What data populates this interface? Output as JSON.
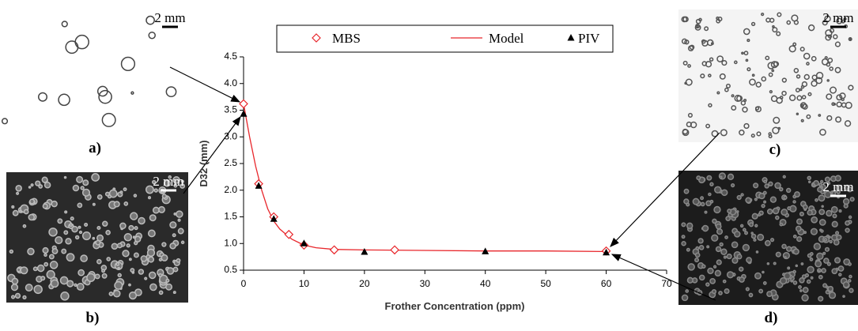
{
  "chart_data": {
    "type": "line",
    "x_label": "Frother Concentration (ppm)",
    "y_label": "D32 (mm)",
    "xlim": [
      0,
      70
    ],
    "xticks": [
      0,
      10,
      20,
      30,
      40,
      50,
      60,
      70
    ],
    "ylim": [
      0.5,
      4.5
    ],
    "yticks": [
      0.5,
      {
        "value": 1,
        "label": "1.0"
      },
      1.5,
      {
        "value": 2,
        "label": "2.0"
      },
      2.5,
      {
        "value": 3,
        "label": "3.0"
      },
      3.5,
      {
        "value": 4,
        "label": "4.0"
      },
      4.5
    ],
    "series": [
      {
        "name": "MBS",
        "color": "#e8262b",
        "marker": "diamond",
        "x": [
          0,
          2.5,
          5,
          7.5,
          10,
          15,
          25,
          60
        ],
        "values": [
          3.62,
          2.12,
          1.5,
          1.17,
          0.97,
          0.88,
          0.88,
          0.86
        ]
      },
      {
        "name": "Model",
        "color": "#e8262b",
        "marker": "line",
        "x": [
          0,
          1,
          2,
          3,
          4,
          5,
          6,
          8,
          10,
          12,
          15,
          20,
          30,
          40,
          50,
          60
        ],
        "values": [
          3.62,
          3.0,
          2.45,
          2.0,
          1.65,
          1.42,
          1.27,
          1.08,
          0.97,
          0.92,
          0.89,
          0.88,
          0.87,
          0.86,
          0.86,
          0.85
        ]
      },
      {
        "name": "PIV",
        "color": "#000000",
        "marker": "triangle",
        "x": [
          0,
          2.5,
          5,
          10,
          20,
          40,
          60
        ],
        "values": [
          3.43,
          2.08,
          1.46,
          1.0,
          0.84,
          0.85,
          0.83
        ]
      }
    ],
    "panels": [
      {
        "label": "a)",
        "scale": "2 mm"
      },
      {
        "label": "b)",
        "scale": "2 mm"
      },
      {
        "label": "c)",
        "scale": "2 mm"
      },
      {
        "label": "d)",
        "scale": "2 mm"
      }
    ]
  }
}
